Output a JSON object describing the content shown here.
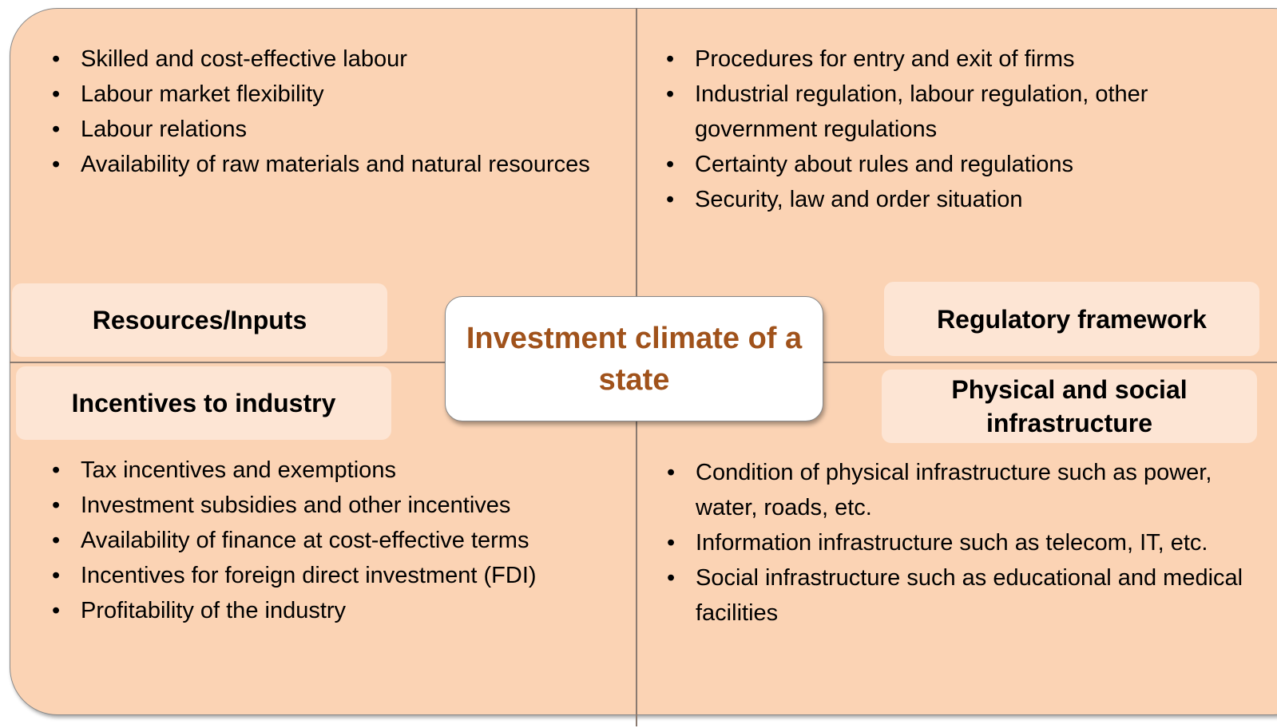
{
  "center": {
    "title": "Investment climate of a state"
  },
  "quadrants": [
    {
      "label": "Resources/Inputs",
      "items": [
        "Skilled and cost-effective labour",
        "Labour market flexibility",
        "Labour relations",
        "Availability of raw materials and natural resources"
      ]
    },
    {
      "label": "Regulatory framework",
      "items": [
        "Procedures for entry and exit of firms",
        "Industrial regulation, labour regulation, other government regulations",
        "Certainty about rules and regulations",
        "Security, law and order situation"
      ]
    },
    {
      "label": "Incentives to industry",
      "items": [
        "Tax incentives and exemptions",
        "Investment subsidies and other incentives",
        "Availability of finance at cost-effective terms",
        "Incentives for foreign direct investment (FDI)",
        "Profitability of the industry"
      ]
    },
    {
      "label": "Physical and social infrastructure",
      "items": [
        "Condition of physical infrastructure such as power, water, roads, etc.",
        "Information infrastructure such as telecom, IT, etc.",
        "Social infrastructure such as educational and medical facilities"
      ]
    }
  ]
}
